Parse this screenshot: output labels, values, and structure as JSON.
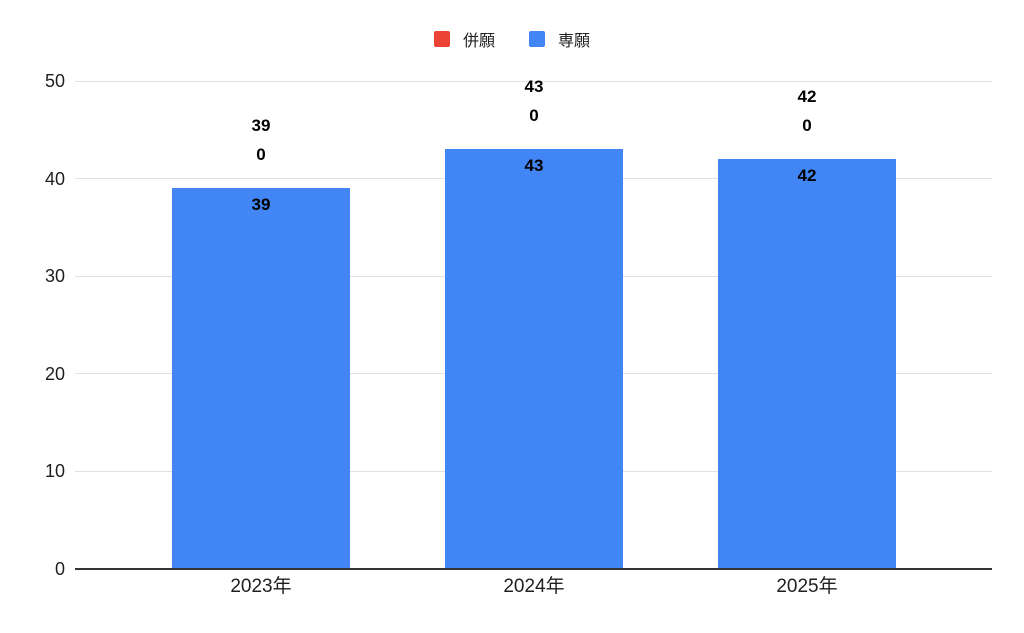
{
  "chart_data": {
    "type": "bar",
    "stacked": true,
    "title": "",
    "categories": [
      "2023年",
      "2024年",
      "2025年"
    ],
    "series": [
      {
        "name": "併願",
        "color": "#EA4335",
        "values": [
          0,
          0,
          0
        ]
      },
      {
        "name": "専願",
        "color": "#4285F4",
        "values": [
          39,
          43,
          42
        ]
      }
    ],
    "totals": [
      39,
      43,
      42
    ],
    "data_labels": {
      "totals": [
        "39",
        "43",
        "42"
      ],
      "heigan": [
        "0",
        "0",
        "0"
      ],
      "sengan": [
        "39",
        "43",
        "42"
      ]
    },
    "xlabel": "",
    "ylabel": "",
    "ylim": [
      0,
      50
    ],
    "yticks": [
      0,
      10,
      20,
      30,
      40,
      50
    ],
    "grid": true,
    "legend_position": "top",
    "background_color": "#ffffff",
    "gridline_color": "#e0e0e0",
    "axis_line_color": "#333333"
  }
}
